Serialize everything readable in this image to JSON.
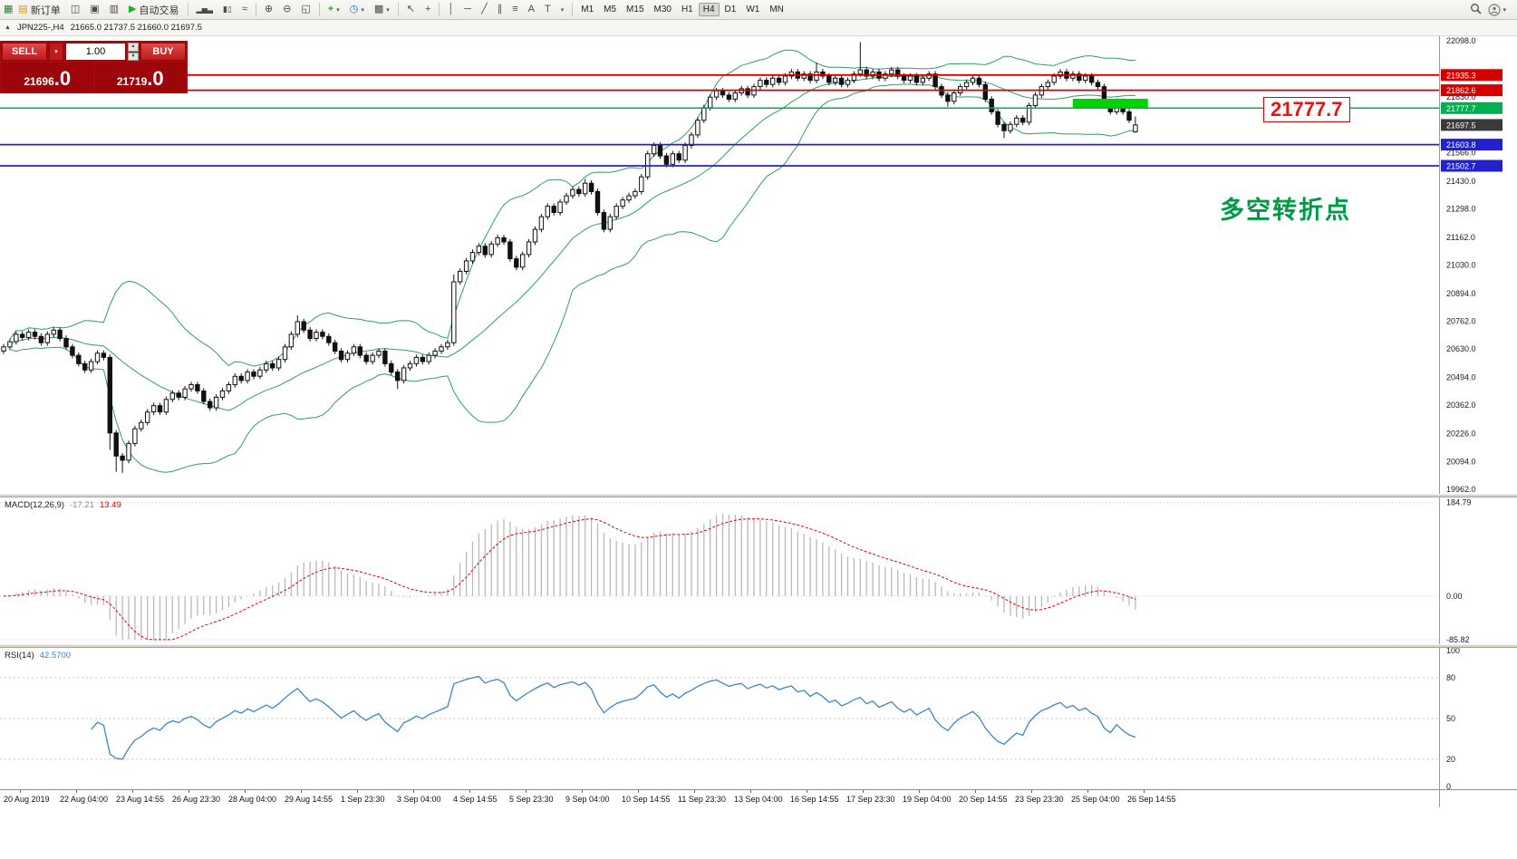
{
  "toolbar": {
    "new_order_label": "新订单",
    "autotrading_label": "自动交易",
    "timeframes": [
      "M1",
      "M5",
      "M15",
      "M30",
      "H1",
      "H4",
      "D1",
      "W1",
      "MN"
    ],
    "active_timeframe": "H4",
    "icons": {
      "app": "▦",
      "new_order": "▤",
      "charts_grid": "◫",
      "data_window": "▣",
      "terminal": "▥",
      "play": "▶",
      "bar_chart": "▂▅▃",
      "candlestick": "▮▯",
      "line_chart": "≈",
      "zoom_in": "⊕",
      "zoom_out": "⊖",
      "tile_windows": "◱",
      "indicators": "+",
      "periods_clock": "◷",
      "template": "▩",
      "cursor": "↖",
      "crosshair": "+",
      "hline": "─",
      "vline": "│",
      "trendline": "╱",
      "channel": "∥",
      "fibonacci": "≡",
      "text": "A",
      "label_tool": "T",
      "caret": "▾",
      "step_up": "▲",
      "step_down": "▼"
    }
  },
  "symbol_strip": {
    "window_icon": "▲",
    "symbol": "JPN225-,H4",
    "ohlc": "21665.0 21737.5 21660.0 21697.5"
  },
  "trade_panel": {
    "sell_label": "SELL",
    "buy_label": "BUY",
    "volume": "1.00",
    "sell_price": "21696.0",
    "buy_price": "21719.0"
  },
  "chart_data": {
    "type": "candlestick",
    "symbol": "JPN225",
    "timeframe": "H4",
    "price_axis": {
      "range_top": 22120,
      "range_bottom": 19940,
      "tick_labels": [
        22098.0,
        21830.0,
        21566.0,
        21430.0,
        21298.0,
        21162.0,
        21030.0,
        20894.0,
        20762.0,
        20630.0,
        20494.0,
        20362.0,
        20226.0,
        20094.0,
        19962.0
      ]
    },
    "candles": {
      "first_open": 20620,
      "default_wick": 14,
      "closes": [
        20640,
        20665,
        20700,
        20685,
        20710,
        20690,
        20660,
        20700,
        20720,
        20680,
        20640,
        20600,
        20560,
        20530,
        20570,
        20610,
        20590,
        20230,
        20120,
        20100,
        20180,
        20250,
        20280,
        20330,
        20360,
        20330,
        20390,
        20420,
        20400,
        20440,
        20460,
        20430,
        20380,
        20350,
        20400,
        20430,
        20460,
        20500,
        20480,
        20520,
        20500,
        20530,
        20560,
        20540,
        20580,
        20640,
        20700,
        20760,
        20720,
        20680,
        20710,
        20690,
        20660,
        20620,
        20580,
        20610,
        20640,
        20600,
        20570,
        20600,
        20620,
        20560,
        20520,
        20480,
        20540,
        20560,
        20590,
        20570,
        20600,
        20620,
        20640,
        20660,
        20950,
        21000,
        21050,
        21090,
        21120,
        21080,
        21130,
        21160,
        21140,
        21060,
        21020,
        21080,
        21140,
        21200,
        21260,
        21310,
        21280,
        21330,
        21360,
        21390,
        21370,
        21420,
        21380,
        21280,
        21200,
        21260,
        21310,
        21340,
        21360,
        21380,
        21450,
        21560,
        21600,
        21550,
        21510,
        21560,
        21530,
        21600,
        21650,
        21720,
        21780,
        21830,
        21860,
        21840,
        21820,
        21850,
        21870,
        21840,
        21880,
        21910,
        21890,
        21920,
        21900,
        21930,
        21950,
        21920,
        21940,
        21910,
        21950,
        21930,
        21900,
        21920,
        21890,
        21910,
        21940,
        21960,
        21930,
        21950,
        21920,
        21940,
        21960,
        21930,
        21910,
        21930,
        21900,
        21920,
        21940,
        21880,
        21840,
        21810,
        21850,
        21880,
        21900,
        21920,
        21890,
        21820,
        21760,
        21700,
        21670,
        21700,
        21730,
        21710,
        21790,
        21840,
        21880,
        21900,
        21930,
        21950,
        21920,
        21940,
        21910,
        21930,
        21900,
        21880,
        21800,
        21760,
        21810,
        21760,
        21720,
        21697.5
      ],
      "overrides": {
        "17": {
          "low": 20150
        },
        "18": {
          "low": 20045
        },
        "19": {
          "low": 20040
        },
        "47": {
          "high": 20790
        },
        "63": {
          "low": 20440
        },
        "72": {
          "high": 20985
        },
        "93": {
          "high": 21440
        },
        "130": {
          "high": 21995
        },
        "137": {
          "high": 22092
        },
        "151": {
          "low": 21785
        },
        "160": {
          "low": 21635
        },
        "181": {
          "open": 21665,
          "high": 21737.5,
          "low": 21660
        }
      }
    },
    "bollinger": {
      "period": 20,
      "deviations": 2,
      "color": "#2f9e68"
    },
    "hlines": [
      {
        "value": 21935.3,
        "color": "#d40000",
        "thickness": 1.8
      },
      {
        "value": 21862.6,
        "color": "#d40000",
        "thickness": 1.8
      },
      {
        "value": 21777.7,
        "color": "#00b050",
        "thickness": 1.5
      },
      {
        "value": 21603.8,
        "color": "#2222cc",
        "thickness": 1.8
      },
      {
        "value": 21502.7,
        "color": "#2222cc",
        "thickness": 1.8
      }
    ],
    "current_price": {
      "value": 21697.5,
      "badge_color": "#3a3a3a"
    },
    "green_box": {
      "from_index": 171,
      "to_index": 183,
      "price_top": 21822,
      "price_bottom": 21776,
      "color": "#00d400"
    },
    "big_price_label": {
      "text": "21777.7",
      "color": "#ee1111"
    },
    "annotation": {
      "text": "多空转折点",
      "color": "#009a44"
    },
    "macd": {
      "name": "MACD(12,26,9)",
      "value_main": "-17.21",
      "value_signal": "13.49",
      "fast": 12,
      "slow": 26,
      "signal": 9,
      "histogram_color": "#b9b9b9",
      "signal_color": "#e00000",
      "range_top": 195,
      "range_bottom": -95,
      "axis_labels": [
        {
          "text": "184.79",
          "value": 184.79
        },
        {
          "text": "0.00",
          "value": 0
        },
        {
          "text": "-85.82",
          "value": -85.82
        }
      ]
    },
    "rsi": {
      "name": "RSI(14)",
      "value": "42.5700",
      "period": 14,
      "color": "#3d86c6",
      "range_top": 102,
      "range_bottom": -2,
      "levels": [
        80,
        50,
        20
      ],
      "axis_labels": [
        {
          "text": "100",
          "value": 100
        },
        {
          "text": "80",
          "value": 80
        },
        {
          "text": "50",
          "value": 50
        },
        {
          "text": "20",
          "value": 20
        },
        {
          "text": "0",
          "value": 0
        }
      ]
    },
    "time_labels": [
      "20 Aug 2019",
      "22 Aug 04:00",
      "23 Aug 14:55",
      "26 Aug 23:30",
      "28 Aug 04:00",
      "29 Aug 14:55",
      "1 Sep 23:30",
      "3 Sep 04:00",
      "4 Sep 14:55",
      "5 Sep 23:30",
      "9 Sep 04:00",
      "10 Sep 14:55",
      "11 Sep 23:30",
      "13 Sep 04:00",
      "16 Sep 14:55",
      "17 Sep 23:30",
      "19 Sep 04:00",
      "20 Sep 14:55",
      "23 Sep 23:30",
      "25 Sep 04:00",
      "26 Sep 14:55"
    ]
  }
}
